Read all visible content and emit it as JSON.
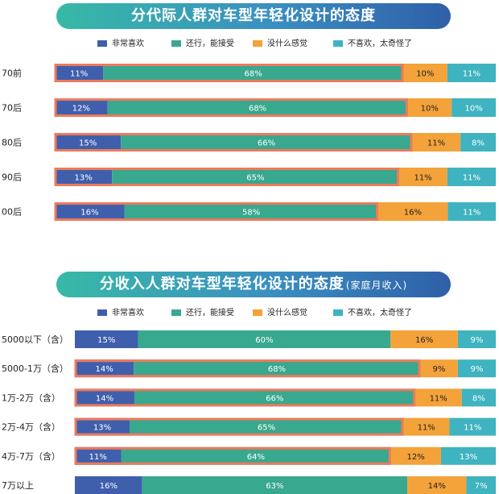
{
  "chart_data": [
    {
      "type": "bar",
      "orientation": "horizontal-stacked-100",
      "title": "分代际人群对车型年轻化设计的态度",
      "subtitle": "",
      "legend": [
        "非常喜欢",
        "还行，能接受",
        "没什么感觉",
        "不喜欢，太奇怪了"
      ],
      "legend_position": "top",
      "categories": [
        "70前",
        "70后",
        "80后",
        "90后",
        "00后"
      ],
      "series": [
        {
          "name": "非常喜欢",
          "values": [
            11,
            12,
            15,
            13,
            16
          ]
        },
        {
          "name": "还行，能接受",
          "values": [
            68,
            68,
            66,
            65,
            58
          ]
        },
        {
          "name": "没什么感觉",
          "values": [
            10,
            10,
            11,
            11,
            16
          ]
        },
        {
          "name": "不喜欢，太奇怪了",
          "values": [
            11,
            10,
            8,
            11,
            11
          ]
        }
      ],
      "highlighted_categories": [
        "70前",
        "70后",
        "80后",
        "90后",
        "00后"
      ],
      "xlim": [
        0,
        100
      ]
    },
    {
      "type": "bar",
      "orientation": "horizontal-stacked-100",
      "title": "分收入人群对车型年轻化设计的态度",
      "subtitle": "(家庭月收入)",
      "legend": [
        "非常喜欢",
        "还行，能接受",
        "没什么感觉",
        "不喜欢，太奇怪了"
      ],
      "legend_position": "top",
      "categories": [
        "5000以下（含）",
        "5000-1万（含）",
        "1万-2万（含）",
        "2万-4万（含）",
        "4万-7万（含）",
        "7万以上"
      ],
      "series": [
        {
          "name": "非常喜欢",
          "values": [
            15,
            14,
            14,
            13,
            11,
            16
          ]
        },
        {
          "name": "还行，能接受",
          "values": [
            60,
            68,
            66,
            65,
            64,
            63
          ]
        },
        {
          "name": "没什么感觉",
          "values": [
            16,
            9,
            11,
            11,
            12,
            14
          ]
        },
        {
          "name": "不喜欢，太奇怪了",
          "values": [
            9,
            9,
            8,
            11,
            13,
            7
          ]
        }
      ],
      "highlighted_categories": [
        "5000-1万（含）",
        "1万-2万（含）",
        "2万-4万（含）",
        "4万-7万（含）"
      ],
      "xlim": [
        0,
        100
      ]
    }
  ],
  "colors": {
    "very_like": "#3f5fad",
    "acceptable": "#38a88e",
    "indifferent": "#f4a23a",
    "dislike": "#3fb3c0",
    "highlight_border": "#ec7a5c"
  }
}
